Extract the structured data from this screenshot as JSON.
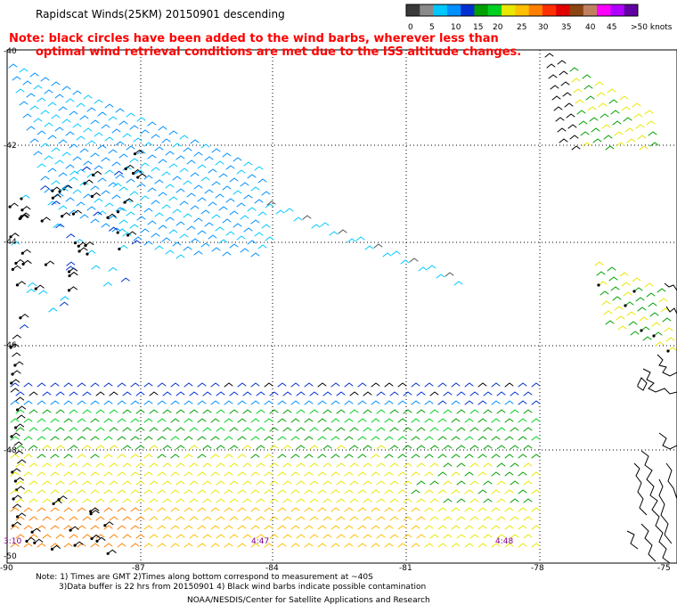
{
  "header": {
    "title": "Rapidscat Winds(25KM) 20150901 descending"
  },
  "note": {
    "line1": "Note: black circles have been added to the wind barbs, wherever less than",
    "line2": "optimal wind retrieval conditions are met due to the ISS altitude changes."
  },
  "legend": {
    "ticks": [
      "0",
      "5",
      "10",
      "15",
      "20",
      "25",
      "30",
      "35",
      "40",
      "45",
      ">50 knots"
    ],
    "colors": [
      "#3a3a3a",
      "#8a8a8a",
      "#00c8ff",
      "#0090ff",
      "#0030d0",
      "#00a000",
      "#00d020",
      "#e8e800",
      "#ffc000",
      "#ff8000",
      "#ff3000",
      "#e00000",
      "#8b4513",
      "#c08060",
      "#ff00ff",
      "#b000ff",
      "#6000a0"
    ]
  },
  "map": {
    "lat_labels": [
      "-40",
      "-42",
      "-44",
      "-46",
      "-48",
      "-50"
    ],
    "lon_labels": [
      "-90",
      "-87",
      "-84",
      "-81",
      "-78",
      "-75"
    ],
    "time_labels": [
      "3:10",
      "4:47",
      "4:48"
    ]
  },
  "footer": {
    "line1": "Note: 1) Times are GMT 2)Times along bottom correspond to measurement at ~40S",
    "line2": "3)Data buffer is 22 hrs from 20150901 4) Black wind barbs indicate possible contamination",
    "credit": "NOAA/NESDIS/Center for Satellite Applications and Research"
  }
}
